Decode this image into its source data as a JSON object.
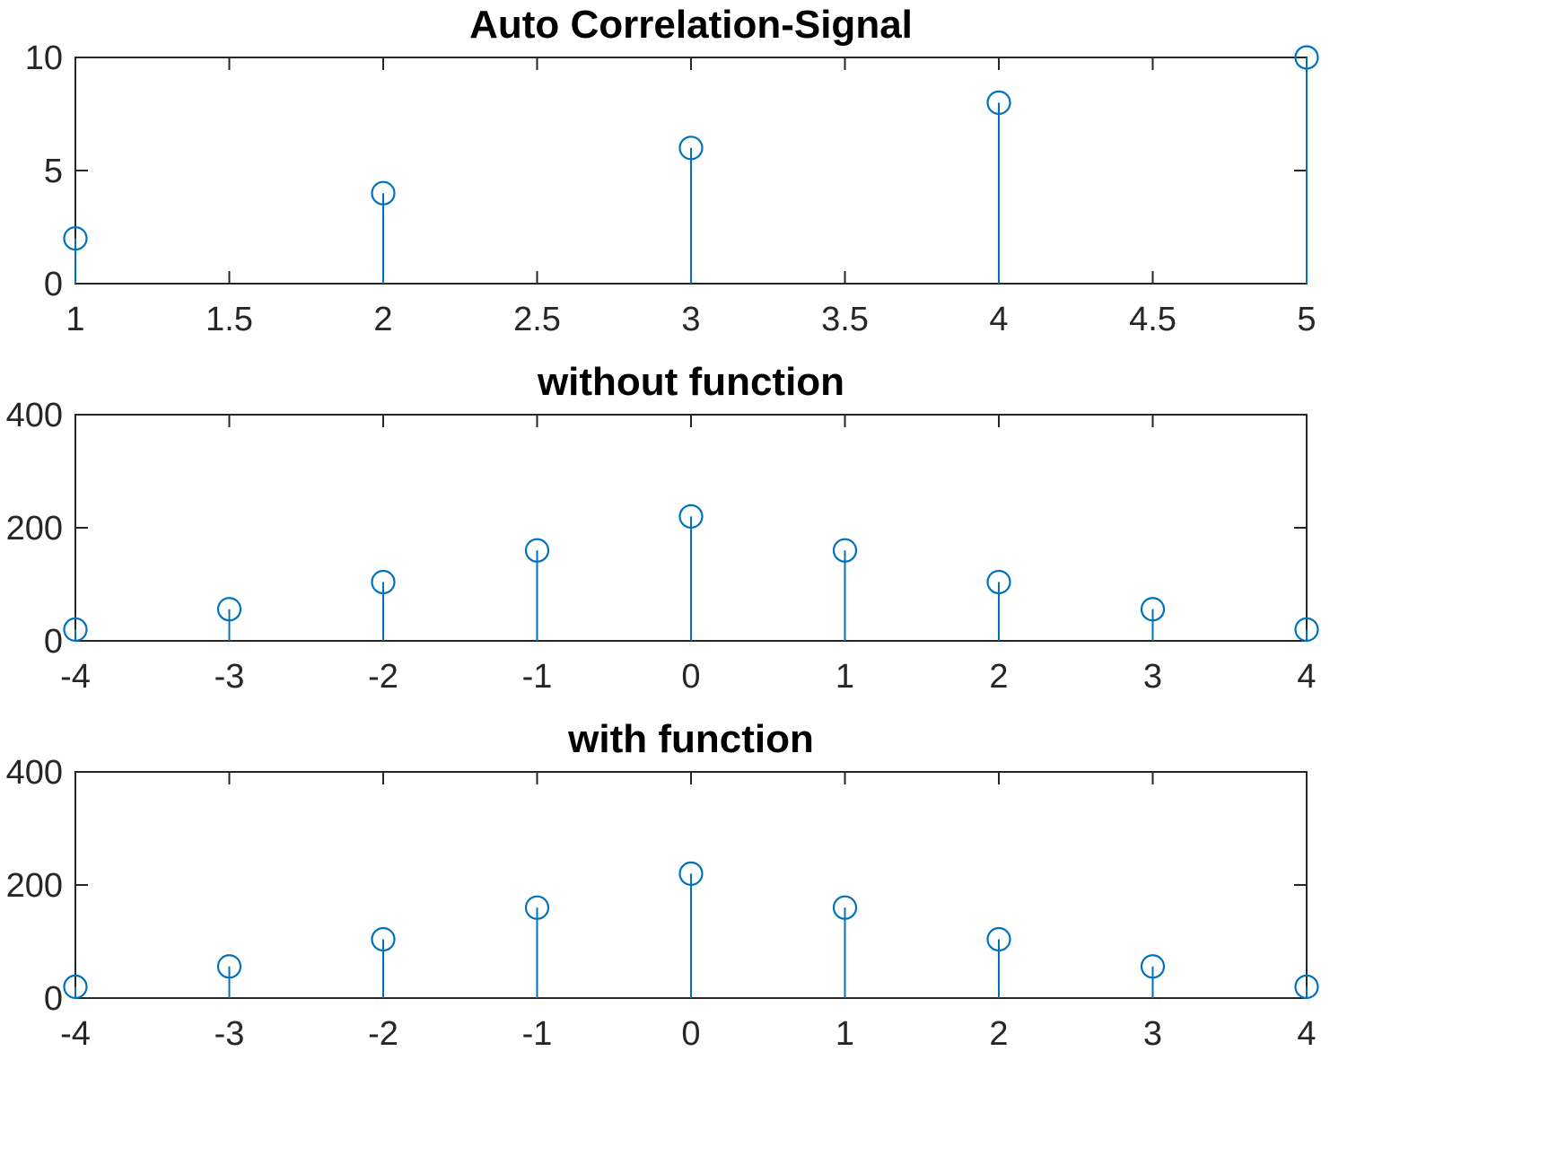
{
  "colors": {
    "series": "#0072BD",
    "axes": "#262626",
    "title": "#000000"
  },
  "chart_data": [
    {
      "type": "stem",
      "title": "Auto Correlation-Signal",
      "xlabel": "",
      "ylabel": "",
      "xlim": [
        1,
        5
      ],
      "ylim": [
        0,
        10
      ],
      "xticks": [
        1,
        1.5,
        2,
        2.5,
        3,
        3.5,
        4,
        4.5,
        5
      ],
      "xtick_labels": [
        "1",
        "1.5",
        "2",
        "2.5",
        "3",
        "3.5",
        "4",
        "4.5",
        "5"
      ],
      "yticks": [
        0,
        5,
        10
      ],
      "ytick_labels": [
        "0",
        "5",
        "10"
      ],
      "grid": false,
      "x": [
        1,
        2,
        3,
        4,
        5
      ],
      "y": [
        2,
        4,
        6,
        8,
        10
      ]
    },
    {
      "type": "stem",
      "title": "without function",
      "xlabel": "",
      "ylabel": "",
      "xlim": [
        -4,
        4
      ],
      "ylim": [
        0,
        400
      ],
      "xticks": [
        -4,
        -3,
        -2,
        -1,
        0,
        1,
        2,
        3,
        4
      ],
      "xtick_labels": [
        "-4",
        "-3",
        "-2",
        "-1",
        "0",
        "1",
        "2",
        "3",
        "4"
      ],
      "yticks": [
        0,
        200,
        400
      ],
      "ytick_labels": [
        "0",
        "200",
        "400"
      ],
      "grid": false,
      "x": [
        -4,
        -3,
        -2,
        -1,
        0,
        1,
        2,
        3,
        4
      ],
      "y": [
        20,
        56,
        104,
        160,
        220,
        160,
        104,
        56,
        20
      ]
    },
    {
      "type": "stem",
      "title": "with function",
      "xlabel": "",
      "ylabel": "",
      "xlim": [
        -4,
        4
      ],
      "ylim": [
        0,
        400
      ],
      "xticks": [
        -4,
        -3,
        -2,
        -1,
        0,
        1,
        2,
        3,
        4
      ],
      "xtick_labels": [
        "-4",
        "-3",
        "-2",
        "-1",
        "0",
        "1",
        "2",
        "3",
        "4"
      ],
      "yticks": [
        0,
        200,
        400
      ],
      "ytick_labels": [
        "0",
        "200",
        "400"
      ],
      "grid": false,
      "x": [
        -4,
        -3,
        -2,
        -1,
        0,
        1,
        2,
        3,
        4
      ],
      "y": [
        20,
        56,
        104,
        160,
        220,
        160,
        104,
        56,
        20
      ]
    }
  ]
}
